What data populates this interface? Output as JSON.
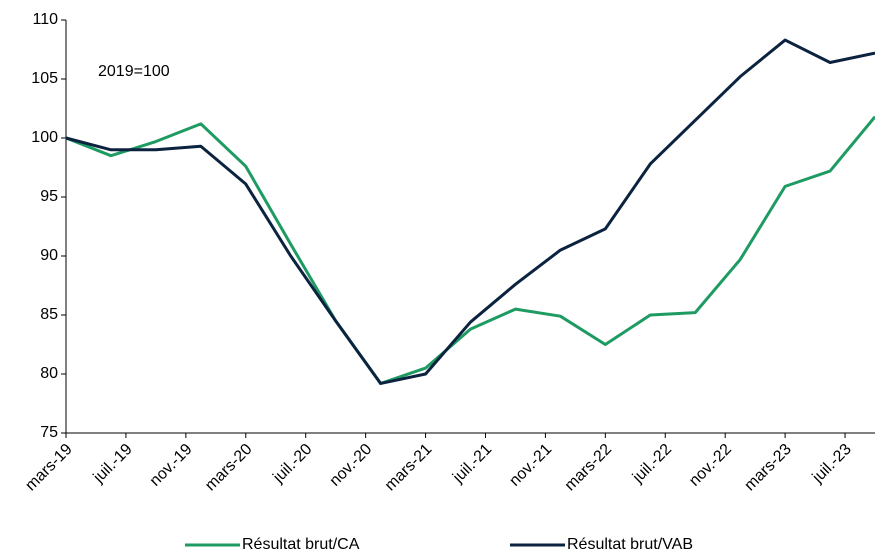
{
  "chart_data": {
    "type": "line",
    "annotation": "2019=100",
    "x": [
      "2019-03",
      "2019-06",
      "2019-09",
      "2019-12",
      "2020-03",
      "2020-06",
      "2020-09",
      "2020-12",
      "2021-03",
      "2021-06",
      "2021-09",
      "2021-12",
      "2022-03",
      "2022-06",
      "2022-09",
      "2022-12",
      "2023-03",
      "2023-06",
      "2023-09"
    ],
    "series": [
      {
        "name": "Résultat brut/CA",
        "color": "#1e9b62",
        "values": [
          100,
          98.5,
          99.7,
          101.2,
          97.6,
          91,
          84.5,
          79.2,
          80.5,
          83.8,
          85.5,
          84.9,
          82.5,
          85,
          85.2,
          89.7,
          95.9,
          97.2,
          101.8
        ]
      },
      {
        "name": "Résultat brut/VAB",
        "color": "#0c2340",
        "values": [
          100,
          99,
          99,
          99.3,
          96.1,
          90,
          84.5,
          79.2,
          80,
          84.4,
          87.6,
          90.5,
          92.3,
          97.8,
          101.5,
          105.2,
          108.3,
          106.4,
          107.2
        ]
      }
    ],
    "xlim": [
      "2019-03",
      "2023-09"
    ],
    "xticks": [
      {
        "value": "2019-03",
        "label": "mars-19"
      },
      {
        "value": "2019-07",
        "label": "juil.-19"
      },
      {
        "value": "2019-11",
        "label": "nov.-19"
      },
      {
        "value": "2020-03",
        "label": "mars-20"
      },
      {
        "value": "2020-07",
        "label": "juil.-20"
      },
      {
        "value": "2020-11",
        "label": "nov.-20"
      },
      {
        "value": "2021-03",
        "label": "mars-21"
      },
      {
        "value": "2021-07",
        "label": "juil.-21"
      },
      {
        "value": "2021-11",
        "label": "nov.-21"
      },
      {
        "value": "2022-03",
        "label": "mars-22"
      },
      {
        "value": "2022-07",
        "label": "juil.-22"
      },
      {
        "value": "2022-11",
        "label": "nov.-22"
      },
      {
        "value": "2023-03",
        "label": "mars-23"
      },
      {
        "value": "2023-07",
        "label": "juil.-23"
      }
    ],
    "ylim": [
      75,
      110
    ],
    "yticks": [
      75,
      80,
      85,
      90,
      95,
      100,
      105,
      110
    ],
    "grid": false,
    "legend": "bottom"
  }
}
